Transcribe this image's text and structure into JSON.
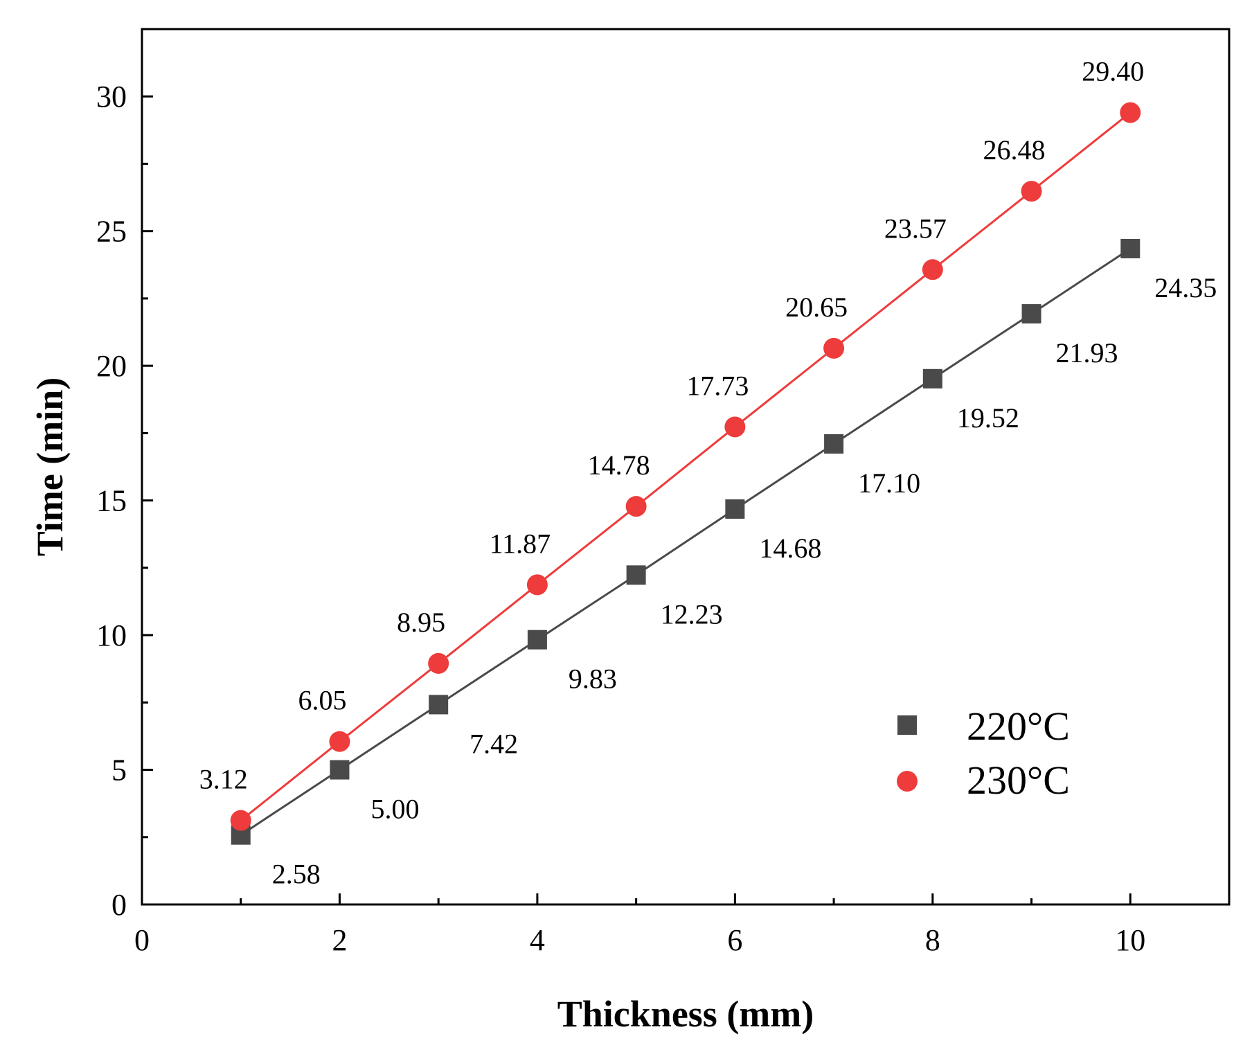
{
  "chart_data": {
    "type": "line",
    "xlabel": "Thickness (mm)",
    "ylabel": "Time (min)",
    "xlim": [
      0,
      11
    ],
    "ylim": [
      0,
      32.5
    ],
    "xticks": [
      "0",
      "2",
      "4",
      "6",
      "8",
      "10"
    ],
    "yticks": [
      "0",
      "5",
      "10",
      "15",
      "20",
      "25",
      "30"
    ],
    "grid": false,
    "legend_position": "bottom-right",
    "x": [
      1,
      2,
      3,
      4,
      5,
      6,
      7,
      8,
      9,
      10
    ],
    "series": [
      {
        "name": "220°C",
        "marker": "square",
        "color": "#4a4a4a",
        "values": [
          2.58,
          5.0,
          7.42,
          9.83,
          12.23,
          14.68,
          17.1,
          19.52,
          21.93,
          24.35
        ],
        "labels": [
          "2.58",
          "5.00",
          "7.42",
          "9.83",
          "12.23",
          "14.68",
          "17.10",
          "19.52",
          "21.93",
          "24.35"
        ]
      },
      {
        "name": "230°C",
        "marker": "circle",
        "color": "#ee3b3b",
        "values": [
          3.12,
          6.05,
          8.95,
          11.87,
          14.78,
          17.73,
          20.65,
          23.57,
          26.48,
          29.4
        ],
        "labels": [
          "3.12",
          "6.05",
          "8.95",
          "11.87",
          "14.78",
          "17.73",
          "20.65",
          "23.57",
          "26.48",
          "29.40"
        ]
      }
    ]
  }
}
